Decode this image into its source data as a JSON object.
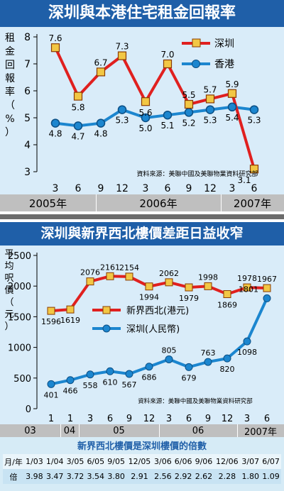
{
  "top": {
    "title": "深圳與本港住宅租金回報率",
    "ylabel": "租金回報率（%）",
    "source": "資料來源：美聯中國及美聯物業資料研究部",
    "years": [
      "2005年",
      "2006年",
      "2007年"
    ],
    "colors": {
      "sz": "#e0201f",
      "hk": "#1c86cf"
    }
  },
  "bottom": {
    "title": "深圳與新界西北樓價差距日益收窄",
    "ylabel": "平均呎價（元）",
    "source": "資料來源：美聯中國及美聯物業資料研究部",
    "years": [
      "03",
      "04",
      "05",
      "06",
      "2007年"
    ],
    "ratio_title": "新界西北樓價是深圳樓價的倍數",
    "ratio_row1_label": "月/年",
    "ratio_row2_label": "倍",
    "ratio_months": [
      "1/03",
      "1/04",
      "3/05",
      "6/05",
      "9/05",
      "12/05",
      "3/06",
      "6/06",
      "9/06",
      "12/06",
      "3/07",
      "6/07"
    ],
    "ratio_values": [
      "3.98",
      "3.47",
      "3.72",
      "3.54",
      "3.80",
      "2.91",
      "2.56",
      "2.92",
      "2.62",
      "2.28",
      "1.80",
      "1.09"
    ]
  },
  "chart_data": [
    {
      "type": "line",
      "title": "深圳與本港住宅租金回報率",
      "ylabel": "租金回報率（%）",
      "categories": [
        "3",
        "6",
        "9",
        "12",
        "3",
        "6",
        "9",
        "12",
        "3",
        "6"
      ],
      "ylim": [
        3,
        8
      ],
      "yticks": [
        "3",
        "4",
        "5",
        "6",
        "7",
        "8"
      ],
      "legend_position": "top-right",
      "series": [
        {
          "name": "深圳",
          "values": [
            7.6,
            5.8,
            6.7,
            7.3,
            5.6,
            7.0,
            5.5,
            5.7,
            5.9,
            3.1
          ]
        },
        {
          "name": "香港",
          "values": [
            4.8,
            4.7,
            4.8,
            5.3,
            5.0,
            5.1,
            5.2,
            5.3,
            5.4,
            5.3
          ]
        }
      ]
    },
    {
      "type": "line",
      "title": "深圳與新界西北樓價差距日益收窄",
      "ylabel": "平均呎價（元）",
      "categories": [
        "1",
        "1",
        "3",
        "6",
        "9",
        "12",
        "3",
        "6",
        "9",
        "12",
        "3",
        "6"
      ],
      "ylim": [
        0,
        2500
      ],
      "yticks": [
        "0",
        "500",
        "1000",
        "1500",
        "2000",
        "2500"
      ],
      "legend_position": "center-left",
      "series": [
        {
          "name": "新界西北(港元)",
          "values": [
            1596,
            1619,
            2076,
            2161,
            2154,
            1994,
            2062,
            1979,
            1998,
            1869,
            1978,
            1967
          ]
        },
        {
          "name": "深圳(人民幣)",
          "values": [
            401,
            466,
            558,
            610,
            567,
            686,
            805,
            679,
            763,
            820,
            1098,
            1801
          ]
        }
      ]
    }
  ]
}
